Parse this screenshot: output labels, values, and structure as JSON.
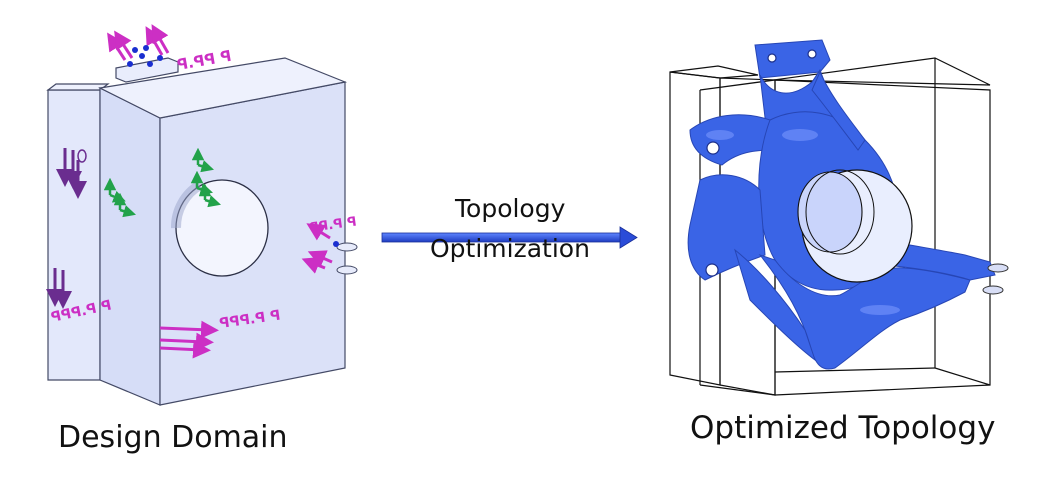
{
  "left_panel": {
    "caption": "Design Domain"
  },
  "process_arrow": {
    "line1": "Topology",
    "line2": "Optimization"
  },
  "right_panel": {
    "caption": "Optimized Topology"
  },
  "colors": {
    "domain_fill": "#d6ddf7",
    "domain_edge": "#444a66",
    "load_arrow": "#cc2fc4",
    "constraint_arrow": "#6a2d8f",
    "support_marker": "#22a24a",
    "topology_fill": "#3a64e6",
    "process_arrow": "#2a4cd8"
  }
}
